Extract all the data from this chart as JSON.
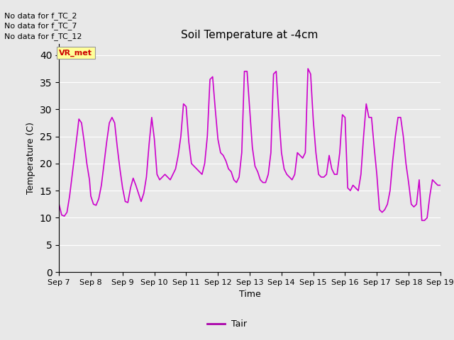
{
  "title": "Soil Temperature at -4cm",
  "xlabel": "Time",
  "ylabel": "Temperature (C)",
  "ylim": [
    0,
    42
  ],
  "yticks": [
    0,
    5,
    10,
    15,
    20,
    25,
    30,
    35,
    40
  ],
  "line_color": "#cc00cc",
  "line_width": 1.2,
  "bg_color": "#e8e8e8",
  "fig_bg_color": "#e8e8e8",
  "legend_label": "Tair",
  "legend_color": "#aa00aa",
  "annotation_texts": [
    "No data for f_TC_2",
    "No data for f_TC_7",
    "No data for f_TC_12"
  ],
  "annotation_box_text": "VR_met",
  "annotation_box_color": "#ffff99",
  "annotation_box_textcolor": "#cc0000",
  "x_tick_labels": [
    "Sep 7",
    "Sep 8",
    "Sep 9",
    "Sep 10",
    "Sep 11",
    "Sep 12",
    "Sep 13",
    "Sep 14",
    "Sep 15",
    "Sep 16",
    "Sep 17",
    "Sep 18",
    "Sep 19"
  ],
  "x_tick_positions": [
    0,
    24,
    48,
    72,
    96,
    120,
    144,
    168,
    192,
    216,
    240,
    264,
    288
  ],
  "x_max": 288,
  "data_hours": [
    0,
    2,
    4,
    6,
    8,
    10,
    12,
    14,
    15,
    17,
    19,
    21,
    23,
    24,
    26,
    28,
    30,
    32,
    34,
    36,
    38,
    40,
    42,
    44,
    46,
    48,
    50,
    52,
    54,
    56,
    58,
    60,
    62,
    64,
    66,
    68,
    70,
    72,
    74,
    76,
    78,
    80,
    82,
    84,
    86,
    88,
    90,
    92,
    94,
    96,
    98,
    100,
    102,
    104,
    106,
    108,
    110,
    112,
    114,
    116,
    118,
    120,
    122,
    124,
    126,
    128,
    130,
    132,
    134,
    136,
    138,
    140,
    142,
    144,
    146,
    148,
    150,
    152,
    154,
    156,
    158,
    160,
    162,
    164,
    166,
    168,
    170,
    172,
    174,
    176,
    178,
    180,
    182,
    184,
    186,
    188,
    190,
    192,
    194,
    196,
    198,
    200,
    202,
    204,
    206,
    208,
    210,
    212,
    214,
    216,
    218,
    220,
    222,
    224,
    226,
    228,
    230,
    232,
    234,
    236,
    238,
    240,
    242,
    244,
    246,
    248,
    250,
    252,
    254,
    256,
    258,
    260,
    262,
    264,
    266,
    268,
    270,
    272,
    274,
    276,
    278,
    280,
    282,
    284,
    286,
    288
  ],
  "data_values": [
    12.5,
    10.5,
    10.3,
    11.0,
    14.0,
    18.0,
    22.0,
    26.0,
    28.2,
    27.5,
    24.0,
    20.0,
    17.0,
    14.0,
    12.5,
    12.3,
    13.5,
    16.0,
    20.0,
    24.0,
    27.5,
    28.5,
    27.5,
    23.0,
    19.0,
    15.5,
    13.0,
    12.8,
    15.5,
    17.3,
    16.0,
    14.5,
    13.0,
    14.5,
    17.5,
    23.5,
    28.5,
    24.5,
    18.0,
    17.0,
    17.5,
    18.0,
    17.5,
    17.0,
    18.0,
    19.0,
    21.5,
    25.0,
    31.0,
    30.5,
    24.0,
    20.0,
    19.5,
    19.0,
    18.5,
    18.0,
    20.0,
    25.0,
    35.5,
    36.0,
    30.0,
    24.5,
    22.0,
    21.5,
    20.5,
    19.0,
    18.5,
    17.0,
    16.5,
    17.5,
    22.0,
    37.0,
    37.0,
    30.0,
    23.0,
    19.5,
    18.5,
    17.0,
    16.5,
    16.5,
    18.0,
    22.0,
    36.5,
    37.0,
    29.0,
    22.0,
    19.0,
    18.0,
    17.5,
    17.0,
    18.0,
    22.0,
    21.5,
    21.0,
    22.0,
    37.5,
    36.5,
    28.0,
    22.0,
    18.0,
    17.5,
    17.5,
    18.0,
    21.5,
    19.0,
    18.0,
    18.0,
    22.0,
    29.0,
    28.5,
    15.5,
    15.0,
    16.0,
    15.5,
    15.0,
    18.0,
    25.0,
    31.0,
    28.5,
    28.5,
    23.0,
    18.0,
    11.5,
    11.0,
    11.5,
    12.5,
    15.0,
    20.5,
    25.0,
    28.5,
    28.5,
    25.0,
    20.0,
    16.5,
    12.5,
    12.0,
    12.5,
    17.0,
    9.5,
    9.5,
    10.0,
    14.0,
    17.0,
    16.5,
    16.0,
    16.0
  ]
}
